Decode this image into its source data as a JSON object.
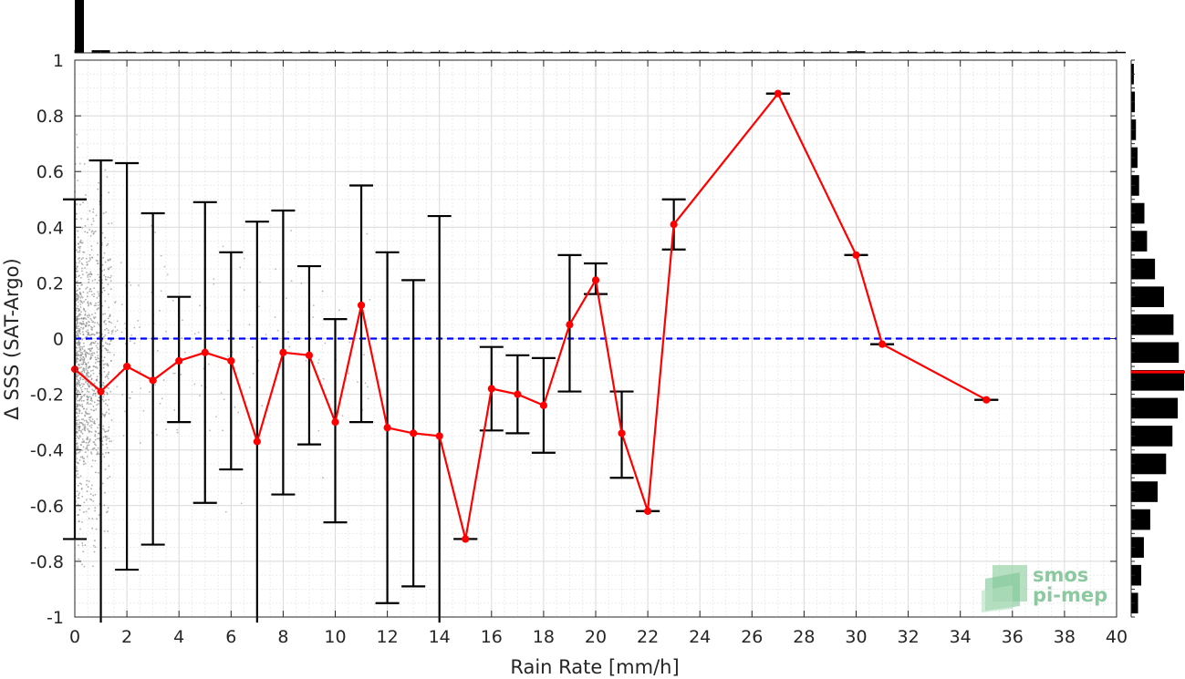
{
  "chart_data": {
    "type": "line",
    "xlabel": "Rain Rate [mm/h]",
    "ylabel": "Δ SSS (SAT-Argo)",
    "xlim": [
      0,
      40
    ],
    "ylim": [
      -1,
      1
    ],
    "xticks": [
      0,
      2,
      4,
      6,
      8,
      10,
      12,
      14,
      16,
      18,
      20,
      22,
      24,
      26,
      28,
      30,
      32,
      34,
      36,
      38,
      40
    ],
    "yticks": [
      1,
      0.8,
      0.6,
      0.4,
      0.2,
      0,
      -0.2,
      -0.4,
      -0.6,
      -0.8,
      -1
    ],
    "ytick_labels": [
      "1",
      "0.8",
      "0.6",
      "0.4",
      "0.2",
      "0",
      "-0.2",
      "-0.4",
      "-0.6",
      "-0.8",
      "-1"
    ],
    "grid": true,
    "reference_line": {
      "y": 0,
      "color": "#0000ff",
      "style": "dashed"
    },
    "series": [
      {
        "color": "#ff0000",
        "points": [
          {
            "x": 0,
            "y": -0.11,
            "lo": -0.72,
            "hi": 0.5
          },
          {
            "x": 1,
            "y": -0.19,
            "lo": -1.02,
            "hi": 0.64
          },
          {
            "x": 2,
            "y": -0.1,
            "lo": -0.83,
            "hi": 0.63
          },
          {
            "x": 3,
            "y": -0.15,
            "lo": -0.74,
            "hi": 0.45
          },
          {
            "x": 4,
            "y": -0.08,
            "lo": -0.3,
            "hi": 0.15
          },
          {
            "x": 5,
            "y": -0.05,
            "lo": -0.59,
            "hi": 0.49
          },
          {
            "x": 6,
            "y": -0.08,
            "lo": -0.47,
            "hi": 0.31
          },
          {
            "x": 7,
            "y": -0.37,
            "lo": -1.02,
            "hi": 0.42
          },
          {
            "x": 8,
            "y": -0.05,
            "lo": -0.56,
            "hi": 0.46
          },
          {
            "x": 9,
            "y": -0.06,
            "lo": -0.38,
            "hi": 0.26
          },
          {
            "x": 10,
            "y": -0.3,
            "lo": -0.66,
            "hi": 0.07
          },
          {
            "x": 11,
            "y": 0.12,
            "lo": -0.3,
            "hi": 0.55
          },
          {
            "x": 12,
            "y": -0.32,
            "lo": -0.95,
            "hi": 0.31
          },
          {
            "x": 13,
            "y": -0.34,
            "lo": -0.89,
            "hi": 0.21
          },
          {
            "x": 14,
            "y": -0.35,
            "lo": -1.02,
            "hi": 0.44
          },
          {
            "x": 15,
            "y": -0.72,
            "lo": -0.72,
            "hi": -0.72
          },
          {
            "x": 16,
            "y": -0.18,
            "lo": -0.33,
            "hi": -0.03
          },
          {
            "x": 17,
            "y": -0.2,
            "lo": -0.34,
            "hi": -0.06
          },
          {
            "x": 18,
            "y": -0.24,
            "lo": -0.41,
            "hi": -0.07
          },
          {
            "x": 19,
            "y": 0.05,
            "lo": -0.19,
            "hi": 0.3
          },
          {
            "x": 20,
            "y": 0.21,
            "lo": 0.16,
            "hi": 0.27
          },
          {
            "x": 21,
            "y": -0.34,
            "lo": -0.5,
            "hi": -0.19
          },
          {
            "x": 22,
            "y": -0.62,
            "lo": -0.62,
            "hi": -0.62
          },
          {
            "x": 23,
            "y": 0.41,
            "lo": 0.32,
            "hi": 0.5
          },
          {
            "x": 27,
            "y": 0.88,
            "lo": 0.88,
            "hi": 0.88
          },
          {
            "x": 30,
            "y": 0.3,
            "lo": 0.3,
            "hi": 0.3
          },
          {
            "x": 31,
            "y": -0.02,
            "lo": -0.02,
            "hi": -0.02
          },
          {
            "x": 35,
            "y": -0.22,
            "lo": -0.22,
            "hi": -0.22
          }
        ]
      }
    ],
    "top_histogram": {
      "bins_x": [
        0,
        1,
        2,
        3,
        4,
        5,
        6,
        7,
        8,
        9,
        10,
        11,
        12,
        13,
        14,
        15,
        16,
        17,
        18,
        19,
        20,
        21,
        22,
        23,
        24,
        25,
        26,
        27,
        28,
        29,
        30,
        31,
        32,
        33,
        34,
        35,
        36,
        37,
        38,
        39,
        40
      ],
      "counts": [
        1.0,
        0.05,
        0.02,
        0.02,
        0.02,
        0.02,
        0.02,
        0.02,
        0.02,
        0.02,
        0.02,
        0.02,
        0.02,
        0.02,
        0.02,
        0.02,
        0.02,
        0.02,
        0.02,
        0.02,
        0.02,
        0.02,
        0.02,
        0.02,
        0.02,
        0.02,
        0.02,
        0.02,
        0.02,
        0.02,
        0.03,
        0.02,
        0.02,
        0.02,
        0.02,
        0.02,
        0.02,
        0.02,
        0.02,
        0.02,
        0.02
      ]
    },
    "right_histogram": {
      "bins_y": [
        0.95,
        0.85,
        0.75,
        0.65,
        0.55,
        0.45,
        0.35,
        0.25,
        0.15,
        0.05,
        -0.05,
        -0.15,
        -0.25,
        -0.35,
        -0.45,
        -0.55,
        -0.65,
        -0.75,
        -0.85,
        -0.95
      ],
      "counts": [
        0.05,
        0.07,
        0.09,
        0.12,
        0.15,
        0.25,
        0.3,
        0.45,
        0.62,
        0.8,
        0.9,
        1.0,
        0.88,
        0.78,
        0.66,
        0.5,
        0.36,
        0.24,
        0.19,
        0.13
      ],
      "median_line_y": -0.12,
      "median_line_color": "#ff0000"
    },
    "scatter_density": {
      "description_color": "#808080"
    }
  },
  "logo": {
    "line1": "smos",
    "line2": "pi-mep"
  }
}
